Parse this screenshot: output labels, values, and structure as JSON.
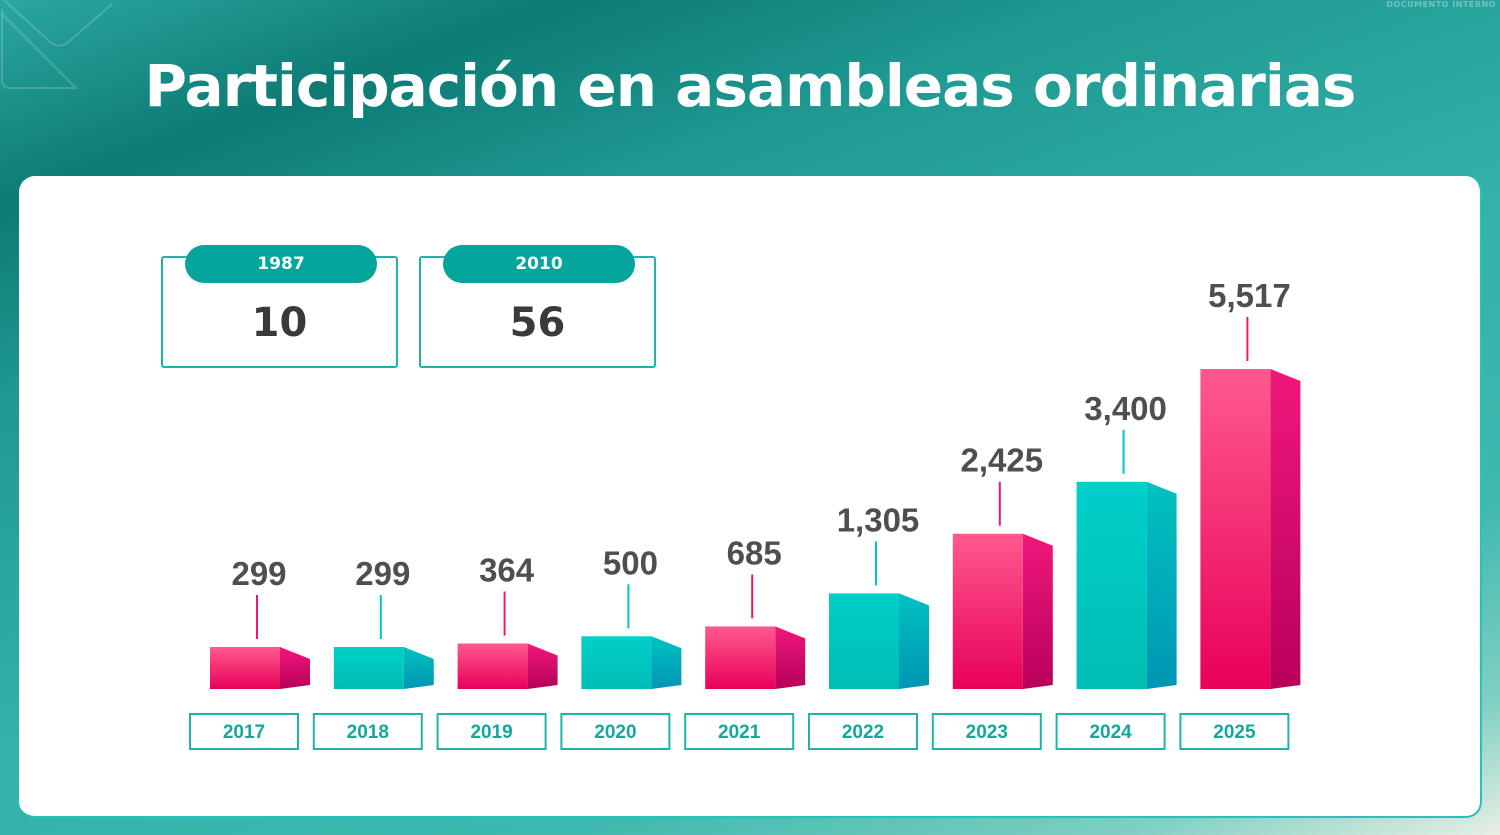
{
  "header": {
    "title": "Participación en asambleas ordinarias",
    "watermark": "DOCUMENTO INTERNO"
  },
  "highlights": [
    {
      "year": "1987",
      "value": "10"
    },
    {
      "year": "2010",
      "value": "56"
    }
  ],
  "colors": {
    "pink": "#f0186e",
    "teal": "#00c7bf",
    "accent": "#04a59c",
    "label": "#4f4f4f"
  },
  "chart_data": {
    "type": "bar",
    "title": "Participación en asambleas ordinarias",
    "xlabel": "",
    "ylabel": "",
    "categories": [
      "2017",
      "2018",
      "2019",
      "2020",
      "2021",
      "2022",
      "2023",
      "2024",
      "2025"
    ],
    "values": [
      299,
      299,
      364,
      500,
      685,
      1305,
      2425,
      3400,
      5517
    ],
    "value_labels": [
      "299",
      "299",
      "364",
      "500",
      "685",
      "1,305",
      "2,425",
      "3,400",
      "5,517"
    ],
    "bar_colors": [
      "pink",
      "teal",
      "pink",
      "teal",
      "pink",
      "teal",
      "pink",
      "teal",
      "pink"
    ],
    "grid": false,
    "legend": "none"
  }
}
